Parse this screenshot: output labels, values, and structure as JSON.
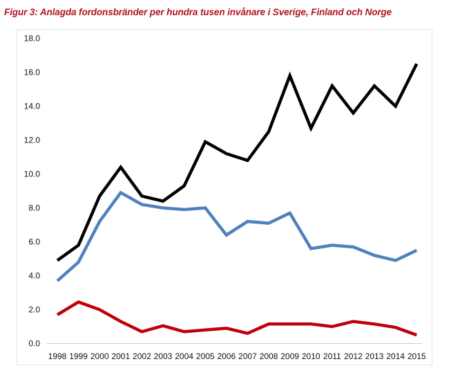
{
  "title": "Figur 3: Anlagda fordonsbränder per hundra tusen invånare i Sverige, Finland och Norge",
  "colors": {
    "title": "#b0141e",
    "frame": "#e2e2e2",
    "axis": "#cccccc"
  },
  "chart_data": {
    "type": "line",
    "title": "Figur 3: Anlagda fordonsbränder per hundra tusen invånare i Sverige, Finland och Norge",
    "xlabel": "",
    "ylabel": "",
    "ylim": [
      0,
      18
    ],
    "yticks": [
      "0.0",
      "2.0",
      "4.0",
      "6.0",
      "8.0",
      "10.0",
      "12.0",
      "14.0",
      "16.0",
      "18.0"
    ],
    "grid": false,
    "legend": "none",
    "categories": [
      "1998",
      "1999",
      "2000",
      "2001",
      "2002",
      "2003",
      "2004",
      "2005",
      "2006",
      "2007",
      "2008",
      "2009",
      "2010",
      "2011",
      "2012",
      "2013",
      "2014",
      "2015"
    ],
    "series": [
      {
        "name": "Sverige",
        "color": "#000000",
        "values": [
          4.9,
          5.8,
          8.7,
          10.4,
          8.7,
          8.4,
          9.3,
          11.9,
          11.2,
          10.8,
          12.5,
          15.8,
          12.7,
          15.2,
          13.6,
          15.2,
          14.0,
          16.5
        ]
      },
      {
        "name": "Finland",
        "color": "#4f81bd",
        "values": [
          3.7,
          4.8,
          7.2,
          8.9,
          8.2,
          8.0,
          7.9,
          8.0,
          6.4,
          7.2,
          7.1,
          7.7,
          5.6,
          5.8,
          5.7,
          5.2,
          4.9,
          5.5
        ]
      },
      {
        "name": "Norge",
        "color": "#c0000b",
        "values": [
          1.7,
          2.45,
          2.0,
          1.3,
          0.7,
          1.05,
          0.7,
          0.8,
          0.9,
          0.6,
          1.15,
          1.15,
          1.15,
          1.0,
          1.3,
          1.15,
          0.95,
          0.5
        ]
      }
    ]
  }
}
